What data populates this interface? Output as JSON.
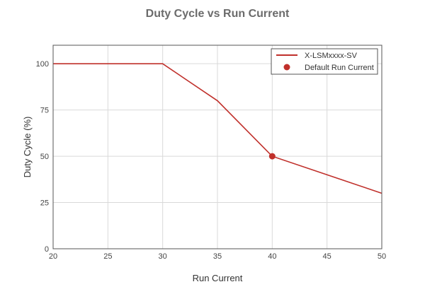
{
  "chart_data": {
    "type": "line",
    "title": "Duty Cycle vs Run Current",
    "xlabel": "Run Current",
    "ylabel": "Duty Cycle (%)",
    "xlim": [
      20,
      50
    ],
    "ylim": [
      0,
      110
    ],
    "xticks": [
      20,
      25,
      30,
      35,
      40,
      45,
      50
    ],
    "yticks": [
      0,
      25,
      50,
      75,
      100
    ],
    "grid": true,
    "legend_position": "top-right",
    "series": [
      {
        "name": "X-LSMxxxx-SV",
        "kind": "line",
        "color": "#c0302b",
        "x": [
          20,
          30,
          35,
          40,
          50
        ],
        "y": [
          100,
          100,
          80,
          50,
          30
        ]
      },
      {
        "name": "Default Run Current",
        "kind": "marker",
        "color": "#c0302b",
        "x": [
          40
        ],
        "y": [
          50
        ]
      }
    ]
  }
}
